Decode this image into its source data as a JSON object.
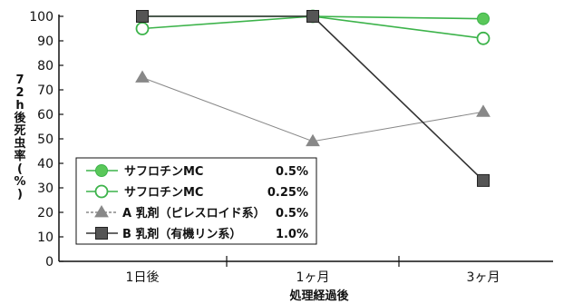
{
  "chart_data": {
    "type": "line",
    "categories": [
      "1日後",
      "1ヶ月",
      "3ヶ月"
    ],
    "ylim": [
      0,
      100
    ],
    "yticks": [
      0,
      10,
      20,
      30,
      40,
      50,
      60,
      70,
      80,
      90,
      100
    ],
    "xlabel": "処理経過後",
    "ylabel_chars": [
      "7",
      "2",
      "h",
      "後",
      "死",
      "虫",
      "率",
      "(",
      "%",
      ")"
    ],
    "ylabel": "72h後死虫率(%)",
    "legend_placement": "bottom-left",
    "grid": false,
    "series": [
      {
        "name": "サフロチンMC",
        "conc": "0.5%",
        "values": [
          100,
          100,
          99
        ],
        "color": "#3cb34a",
        "marker": "circle-filled",
        "dash": "solid",
        "marker_color": "#5ac85a"
      },
      {
        "name": "サフロチンMC",
        "conc": "0.25%",
        "values": [
          95,
          100,
          91
        ],
        "color": "#3cb34a",
        "marker": "circle-open",
        "dash": "solid",
        "marker_color": "#3cb34a"
      },
      {
        "name": "A 乳剤（ピレスロイド系）",
        "conc": "0.5%",
        "values": [
          75,
          49,
          61
        ],
        "color": "#888888",
        "marker": "triangle",
        "dash": "solid",
        "marker_color": "#888888"
      },
      {
        "name": "B 乳剤（有機リン系）",
        "conc": "1.0%",
        "values": [
          100,
          100,
          33
        ],
        "color": "#333333",
        "marker": "square",
        "dash": "solid",
        "marker_color": "#555555"
      }
    ]
  }
}
